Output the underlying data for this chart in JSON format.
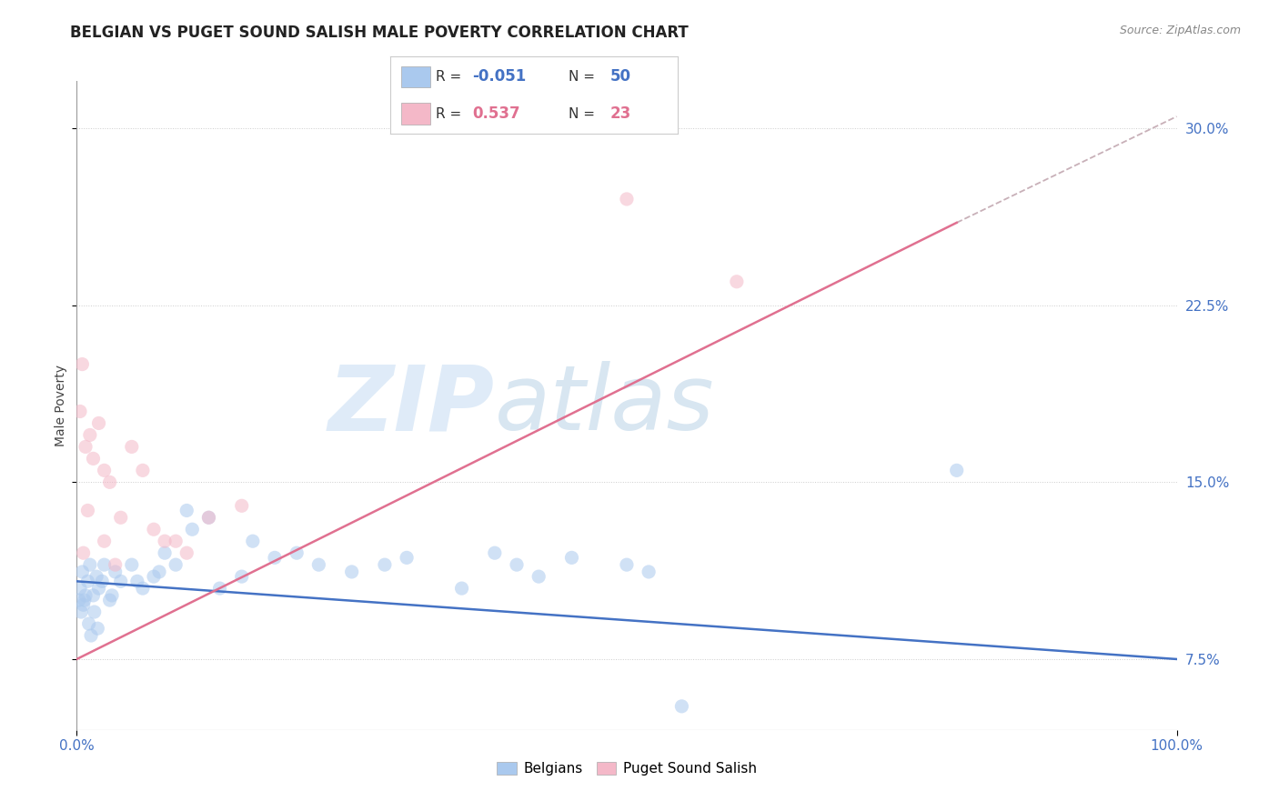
{
  "title": "BELGIAN VS PUGET SOUND SALISH MALE POVERTY CORRELATION CHART",
  "source": "Source: ZipAtlas.com",
  "ylabel": "Male Poverty",
  "xlim": [
    0.0,
    100.0
  ],
  "ylim": [
    4.5,
    32.0
  ],
  "yticks": [
    7.5,
    15.0,
    22.5,
    30.0
  ],
  "xticks": [
    0.0,
    100.0
  ],
  "belgian_color": "#aac9ee",
  "puget_color": "#f4b8c8",
  "belgian_line_color": "#4472c4",
  "puget_line_color": "#e07090",
  "dashed_color": "#c8b0b8",
  "axis_label_color": "#4472c4",
  "belgian_R": -0.051,
  "belgian_N": 50,
  "puget_R": 0.537,
  "puget_N": 23,
  "belgian_scatter": [
    [
      0.3,
      10.5
    ],
    [
      0.5,
      11.2
    ],
    [
      0.7,
      10.0
    ],
    [
      1.0,
      10.8
    ],
    [
      1.2,
      11.5
    ],
    [
      1.5,
      10.2
    ],
    [
      1.8,
      11.0
    ],
    [
      2.0,
      10.5
    ],
    [
      2.3,
      10.8
    ],
    [
      2.5,
      11.5
    ],
    [
      3.0,
      10.0
    ],
    [
      3.5,
      11.2
    ],
    [
      4.0,
      10.8
    ],
    [
      5.0,
      11.5
    ],
    [
      6.0,
      10.5
    ],
    [
      7.0,
      11.0
    ],
    [
      8.0,
      12.0
    ],
    [
      9.0,
      11.5
    ],
    [
      10.0,
      13.8
    ],
    [
      12.0,
      13.5
    ],
    [
      13.0,
      10.5
    ],
    [
      15.0,
      11.0
    ],
    [
      16.0,
      12.5
    ],
    [
      18.0,
      11.8
    ],
    [
      20.0,
      12.0
    ],
    [
      22.0,
      11.5
    ],
    [
      25.0,
      11.2
    ],
    [
      28.0,
      11.5
    ],
    [
      30.0,
      11.8
    ],
    [
      35.0,
      10.5
    ],
    [
      38.0,
      12.0
    ],
    [
      40.0,
      11.5
    ],
    [
      42.0,
      11.0
    ],
    [
      45.0,
      11.8
    ],
    [
      50.0,
      11.5
    ],
    [
      52.0,
      11.2
    ],
    [
      55.0,
      5.5
    ],
    [
      0.2,
      10.0
    ],
    [
      0.4,
      9.5
    ],
    [
      0.6,
      9.8
    ],
    [
      0.8,
      10.2
    ],
    [
      1.1,
      9.0
    ],
    [
      1.3,
      8.5
    ],
    [
      1.6,
      9.5
    ],
    [
      1.9,
      8.8
    ],
    [
      80.0,
      15.5
    ],
    [
      3.2,
      10.2
    ],
    [
      5.5,
      10.8
    ],
    [
      7.5,
      11.2
    ],
    [
      10.5,
      13.0
    ]
  ],
  "puget_scatter": [
    [
      0.3,
      18.0
    ],
    [
      0.8,
      16.5
    ],
    [
      1.0,
      13.8
    ],
    [
      1.5,
      16.0
    ],
    [
      2.0,
      17.5
    ],
    [
      2.5,
      15.5
    ],
    [
      3.0,
      15.0
    ],
    [
      3.5,
      11.5
    ],
    [
      4.0,
      13.5
    ],
    [
      5.0,
      16.5
    ],
    [
      6.0,
      15.5
    ],
    [
      7.0,
      13.0
    ],
    [
      8.0,
      12.5
    ],
    [
      9.0,
      12.5
    ],
    [
      10.0,
      12.0
    ],
    [
      12.0,
      13.5
    ],
    [
      15.0,
      14.0
    ],
    [
      0.5,
      20.0
    ],
    [
      1.2,
      17.0
    ],
    [
      50.0,
      27.0
    ],
    [
      60.0,
      23.5
    ],
    [
      0.6,
      12.0
    ],
    [
      2.5,
      12.5
    ]
  ],
  "belgian_line_x": [
    0.0,
    100.0
  ],
  "belgian_line_y": [
    10.8,
    7.5
  ],
  "puget_line_x": [
    0.0,
    80.0
  ],
  "puget_line_y": [
    7.5,
    26.0
  ],
  "dashed_line_x": [
    80.0,
    100.0
  ],
  "dashed_line_y": [
    26.0,
    30.5
  ],
  "watermark_zip": "ZIP",
  "watermark_atlas": "atlas",
  "background_color": "#ffffff",
  "grid_color": "#cccccc",
  "title_fontsize": 12,
  "label_fontsize": 10,
  "tick_fontsize": 11,
  "scatter_size": 120,
  "scatter_alpha": 0.55,
  "line_width": 1.8
}
